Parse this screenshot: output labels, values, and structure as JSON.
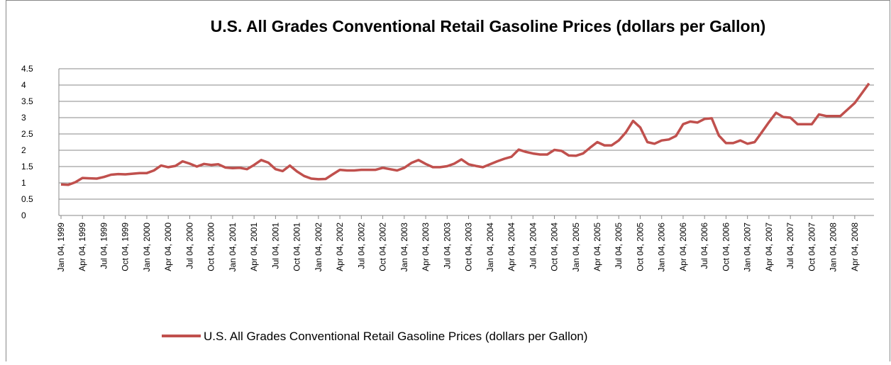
{
  "chart_data": {
    "type": "line",
    "title": "U.S. All Grades Conventional Retail Gasoline Prices (dollars per Gallon)",
    "categories": [
      "Jan 04, 1999",
      null,
      null,
      "Apr 04, 1999",
      null,
      null,
      "Jul 04, 1999",
      null,
      null,
      "Oct 04, 1999",
      null,
      null,
      "Jan 04, 2000",
      null,
      null,
      "Apr 04, 2000",
      null,
      null,
      "Jul 04, 2000",
      null,
      null,
      "Oct 04, 2000",
      null,
      null,
      "Jan 04, 2001",
      null,
      null,
      "Apr 04, 2001",
      null,
      null,
      "Jul 04, 2001",
      null,
      null,
      "Oct 04, 2001",
      null,
      null,
      "Jan 04, 2002",
      null,
      null,
      "Apr 04, 2002",
      null,
      null,
      "Jul 04, 2002",
      null,
      null,
      "Oct 04, 2002",
      null,
      null,
      "Jan 04, 2003",
      null,
      null,
      "Apr 04, 2003",
      null,
      null,
      "Jul 04, 2003",
      null,
      null,
      "Oct 04, 2003",
      null,
      null,
      "Jan 04, 2004",
      null,
      null,
      "Apr 04, 2004",
      null,
      null,
      "Jul 04, 2004",
      null,
      null,
      "Oct 04, 2004",
      null,
      null,
      "Jan 04, 2005",
      null,
      null,
      "Apr 04, 2005",
      null,
      null,
      "Jul 04, 2005",
      null,
      null,
      "Oct 04, 2005",
      null,
      null,
      "Jan 04, 2006",
      null,
      null,
      "Apr 04, 2006",
      null,
      null,
      "Jul 04, 2006",
      null,
      null,
      "Oct 04, 2006",
      null,
      null,
      "Jan 04, 2007",
      null,
      null,
      "Apr 04, 2007",
      null,
      null,
      "Jul 04, 2007",
      null,
      null,
      "Oct 04, 2007",
      null,
      null,
      "Jan 04, 2008",
      null,
      null,
      "Apr 04, 2008",
      null,
      null
    ],
    "series": [
      {
        "name": "U.S. All Grades Conventional Retail Gasoline Prices (dollars per Gallon)",
        "color": "#c0504d",
        "values": [
          0.95,
          0.94,
          1.02,
          1.15,
          1.14,
          1.13,
          1.18,
          1.25,
          1.27,
          1.26,
          1.28,
          1.3,
          1.3,
          1.38,
          1.53,
          1.48,
          1.52,
          1.66,
          1.59,
          1.5,
          1.58,
          1.55,
          1.57,
          1.47,
          1.45,
          1.46,
          1.42,
          1.55,
          1.7,
          1.62,
          1.42,
          1.36,
          1.53,
          1.35,
          1.21,
          1.13,
          1.11,
          1.12,
          1.26,
          1.4,
          1.38,
          1.38,
          1.4,
          1.4,
          1.4,
          1.46,
          1.42,
          1.38,
          1.46,
          1.61,
          1.7,
          1.58,
          1.48,
          1.48,
          1.51,
          1.59,
          1.72,
          1.57,
          1.52,
          1.48,
          1.57,
          1.66,
          1.74,
          1.8,
          2.02,
          1.95,
          1.9,
          1.87,
          1.87,
          2.01,
          1.98,
          1.84,
          1.83,
          1.9,
          2.08,
          2.25,
          2.15,
          2.15,
          2.3,
          2.55,
          2.9,
          2.7,
          2.25,
          2.2,
          2.3,
          2.33,
          2.44,
          2.8,
          2.88,
          2.85,
          2.96,
          2.98,
          2.45,
          2.22,
          2.22,
          2.3,
          2.2,
          2.25,
          2.55,
          2.86,
          3.15,
          3.02,
          3.0,
          2.8,
          2.8,
          2.8,
          3.1,
          3.05,
          3.05,
          3.05,
          3.25,
          3.45,
          3.75,
          4.05
        ]
      }
    ],
    "ylim": [
      0,
      4.5
    ],
    "yticks": [
      0,
      0.5,
      1,
      1.5,
      2,
      2.5,
      3,
      3.5,
      4,
      4.5
    ],
    "grid": true,
    "legend": "bottom"
  }
}
